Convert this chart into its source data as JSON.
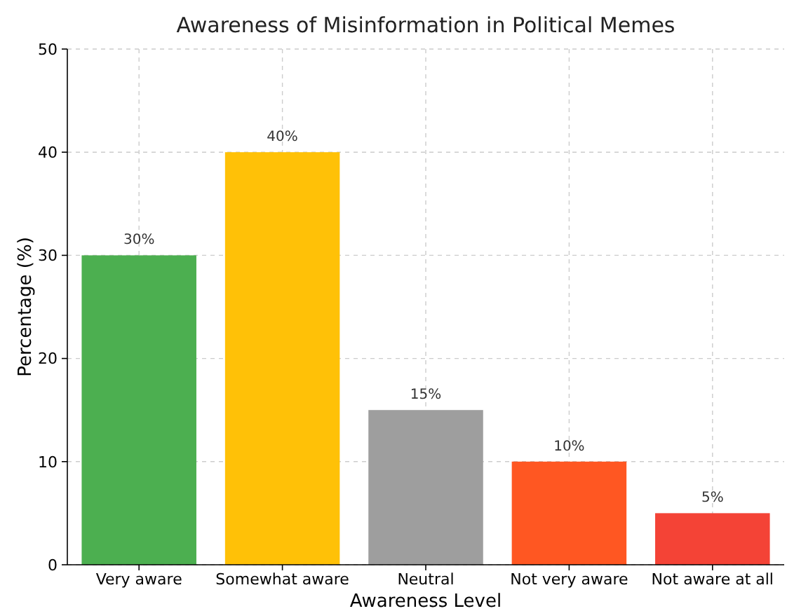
{
  "chart_data": {
    "type": "bar",
    "title": "Awareness of Misinformation in Political Memes",
    "xlabel": "Awareness Level",
    "ylabel": "Percentage (%)",
    "categories": [
      "Very aware",
      "Somewhat aware",
      "Neutral",
      "Not very aware",
      "Not aware at all"
    ],
    "values": [
      30,
      40,
      15,
      10,
      5
    ],
    "colors": [
      "#4caf50",
      "#ffc107",
      "#9e9e9e",
      "#ff5722",
      "#f44336"
    ],
    "value_labels": [
      "30%",
      "40%",
      "15%",
      "10%",
      "5%"
    ],
    "ylim": [
      0,
      50
    ],
    "yticks": [
      0,
      10,
      20,
      30,
      40,
      50
    ],
    "grid": true
  }
}
